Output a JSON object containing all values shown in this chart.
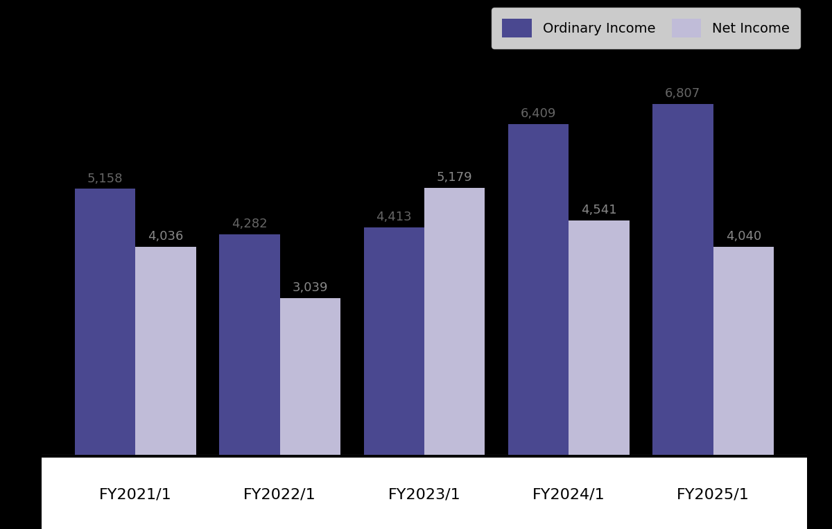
{
  "categories": [
    "FY2021/1",
    "FY2022/1",
    "FY2023/1",
    "FY2024/1",
    "FY2025/1"
  ],
  "ordinary_income": [
    5158,
    4282,
    4413,
    6409,
    6807
  ],
  "net_income": [
    4036,
    3039,
    5179,
    4541,
    4040
  ],
  "ordinary_income_color": "#4a4890",
  "net_income_color": "#c0bcd8",
  "background_color": "#000000",
  "label_color_ordinary": "#666666",
  "label_color_net": "#888888",
  "bar_width": 0.42,
  "ylim": [
    0,
    8000
  ],
  "legend_ordinary": "Ordinary Income",
  "legend_net": "Net Income",
  "xlabel_color": "#000000",
  "value_fontsize": 13,
  "xlabel_fontsize": 16,
  "legend_fontsize": 14,
  "white_strip_color": "#ffffff",
  "label_line_color": "#aaaaaa"
}
